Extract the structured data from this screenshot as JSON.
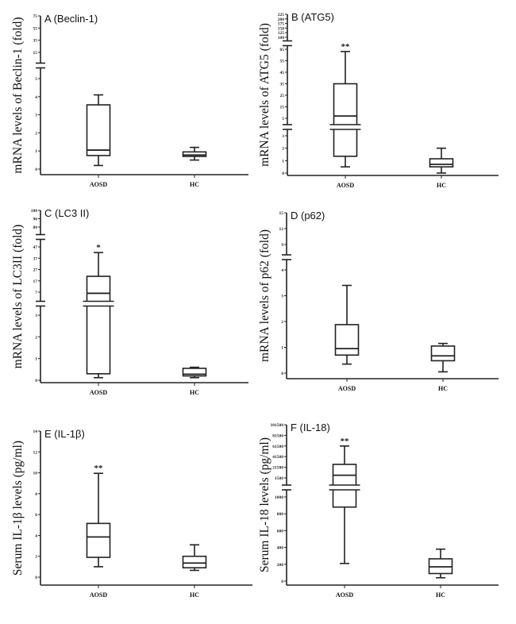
{
  "chart_data": [
    {
      "type": "box",
      "title": "A (Beclin-1)",
      "ylabel": "mRNA levels of Beclin-1 (fold)",
      "categories": [
        "AOSD",
        "HC"
      ],
      "y_axis_broken": true,
      "segments": [
        {
          "ticks": [
            0,
            1,
            2,
            3,
            4,
            5
          ]
        },
        {
          "ticks": [
            15,
            35,
            55,
            75
          ]
        }
      ],
      "series": [
        {
          "category": "AOSD",
          "min": 0.2,
          "q1": 0.75,
          "median": 1.05,
          "q3": 3.55,
          "max": 4.1,
          "significance": ""
        },
        {
          "category": "HC",
          "min": 0.5,
          "q1": 0.7,
          "median": 0.78,
          "q3": 0.95,
          "max": 1.2,
          "significance": ""
        }
      ]
    },
    {
      "type": "box",
      "title": "B (ATG5)",
      "ylabel": "mRNA levels of ATG5 (fold)",
      "categories": [
        "AOSD",
        "HC"
      ],
      "y_axis_broken": true,
      "segments": [
        {
          "ticks": [
            0,
            1,
            2,
            3
          ]
        },
        {
          "ticks": [
            5,
            15,
            25,
            35,
            45,
            55,
            65
          ]
        },
        {
          "ticks": [
            100,
            125,
            150,
            175,
            200,
            225
          ]
        }
      ],
      "series": [
        {
          "category": "AOSD",
          "min": 0.5,
          "q1": 1.35,
          "median": 7,
          "q3": 35,
          "max": 63,
          "significance": "**"
        },
        {
          "category": "HC",
          "min": 0.0,
          "q1": 0.5,
          "median": 0.7,
          "q3": 1.15,
          "max": 2.0,
          "significance": ""
        }
      ]
    },
    {
      "type": "box",
      "title": "C (LC3 II)",
      "ylabel": "mRNA levels of LC3II (fold)",
      "categories": [
        "AOSD",
        "HC"
      ],
      "y_axis_broken": true,
      "segments": [
        {
          "ticks": [
            0,
            1,
            2,
            3
          ]
        },
        {
          "ticks": [
            7,
            17,
            27,
            37,
            47
          ]
        },
        {
          "ticks": [
            80,
            90,
            100
          ]
        }
      ],
      "series": [
        {
          "category": "AOSD",
          "min": 0.12,
          "q1": 0.3,
          "median": 6,
          "q3": 21,
          "max": 42,
          "significance": "*"
        },
        {
          "category": "HC",
          "min": 0.12,
          "q1": 0.2,
          "median": 0.28,
          "q3": 0.55,
          "max": 0.6,
          "significance": ""
        }
      ]
    },
    {
      "type": "box",
      "title": "D (p62)",
      "ylabel": "mRNA levels of p62 (fold)",
      "categories": [
        "AOSD",
        "HC"
      ],
      "y_axis_broken": true,
      "segments": [
        {
          "ticks": [
            0,
            1,
            2,
            3,
            4
          ]
        },
        {
          "ticks": [
            9,
            12,
            15
          ]
        }
      ],
      "series": [
        {
          "category": "AOSD",
          "min": 0.35,
          "q1": 0.7,
          "median": 0.95,
          "q3": 1.88,
          "max": 3.4,
          "significance": ""
        },
        {
          "category": "HC",
          "min": 0.05,
          "q1": 0.48,
          "median": 0.67,
          "q3": 1.05,
          "max": 1.15,
          "significance": ""
        }
      ]
    },
    {
      "type": "box",
      "title": "E (IL-1β)",
      "ylabel": "Serum IL-1β levels (pg/ml)",
      "categories": [
        "AOSD",
        "HC"
      ],
      "y_axis_broken": false,
      "segments": [
        {
          "ticks": [
            0,
            2,
            4,
            6,
            8,
            10,
            12,
            14
          ]
        }
      ],
      "series": [
        {
          "category": "AOSD",
          "min": 1.0,
          "q1": 1.9,
          "median": 3.85,
          "q3": 5.15,
          "max": 9.95,
          "significance": "**"
        },
        {
          "category": "HC",
          "min": 0.65,
          "q1": 0.9,
          "median": 1.35,
          "q3": 2.0,
          "max": 3.1,
          "significance": ""
        }
      ]
    },
    {
      "type": "box",
      "title": "F (IL-18)",
      "ylabel": "Serum IL-18 levels (pg/ml)",
      "categories": [
        "AOSD",
        "HC"
      ],
      "y_axis_broken": true,
      "segments": [
        {
          "ticks": [
            0,
            200,
            400,
            600,
            800,
            1000
          ]
        },
        {
          "ticks": [
            1500,
            21500,
            41500,
            61500,
            81500,
            101500
          ]
        }
      ],
      "series": [
        {
          "category": "AOSD",
          "min": 210,
          "q1": 880,
          "median": 6500,
          "q3": 27000,
          "max": 61500,
          "significance": "**"
        },
        {
          "category": "HC",
          "min": 40,
          "q1": 90,
          "median": 170,
          "q3": 265,
          "max": 380,
          "significance": ""
        }
      ]
    }
  ]
}
